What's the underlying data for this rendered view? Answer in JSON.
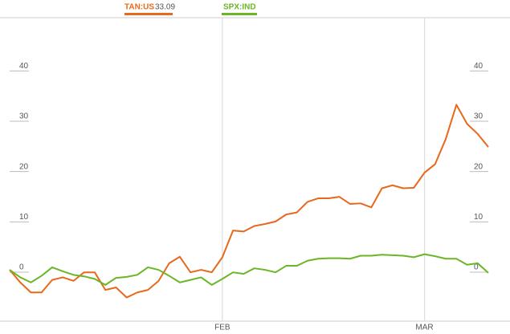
{
  "chart_data": {
    "type": "line",
    "x": [
      0,
      1,
      2,
      3,
      4,
      5,
      6,
      7,
      8,
      9,
      10,
      11,
      12,
      13,
      14,
      15,
      16,
      17,
      18,
      19,
      20,
      21,
      22,
      23,
      24,
      25,
      26,
      27,
      28,
      29,
      30,
      31,
      32,
      33,
      34,
      35,
      36,
      37,
      38,
      39,
      40,
      41,
      42,
      43,
      44,
      45
    ],
    "xlim": [
      0,
      45
    ],
    "xticks": [
      {
        "value": 20,
        "label": "FEB"
      },
      {
        "value": 39,
        "label": "MAR"
      }
    ],
    "ylim": [
      -10.2,
      50.1
    ],
    "yticks": [
      0,
      10,
      20,
      30,
      40
    ],
    "series": [
      {
        "name": "TAN:US",
        "legend_value": 33.09,
        "color": "#e8681c",
        "values": [
          0,
          -2.5,
          -4.5,
          -4.5,
          -2,
          -1.5,
          -2.2,
          -0.5,
          -0.5,
          -4,
          -3.5,
          -5.5,
          -4.5,
          -4,
          -2.2,
          1.3,
          2.6,
          -0.5,
          0,
          -0.5,
          2.5,
          7.8,
          7.6,
          8.7,
          9.1,
          9.6,
          11,
          11.4,
          13.5,
          14.2,
          14.2,
          14.5,
          13.1,
          13.2,
          12.4,
          16.2,
          16.8,
          16.2,
          16.3,
          19.3,
          21,
          26,
          32.8,
          29,
          27,
          24.4
        ]
      },
      {
        "name": "SPX:IND",
        "color": "#6bb626",
        "values": [
          0,
          -1.5,
          -2.5,
          -1.2,
          0.5,
          -0.3,
          -1,
          -1.3,
          -1.8,
          -3,
          -1.6,
          -1.4,
          -1,
          0.5,
          0,
          -1.2,
          -2.5,
          -2,
          -1.5,
          -3,
          -1.8,
          -0.5,
          -0.8,
          0.3,
          0,
          -0.5,
          0.8,
          0.8,
          1.8,
          2.2,
          2.3,
          2.3,
          2.2,
          2.8,
          2.8,
          3,
          2.9,
          2.8,
          2.5,
          3.1,
          2.7,
          2.2,
          2.2,
          1,
          1.3,
          -0.6
        ]
      }
    ]
  }
}
